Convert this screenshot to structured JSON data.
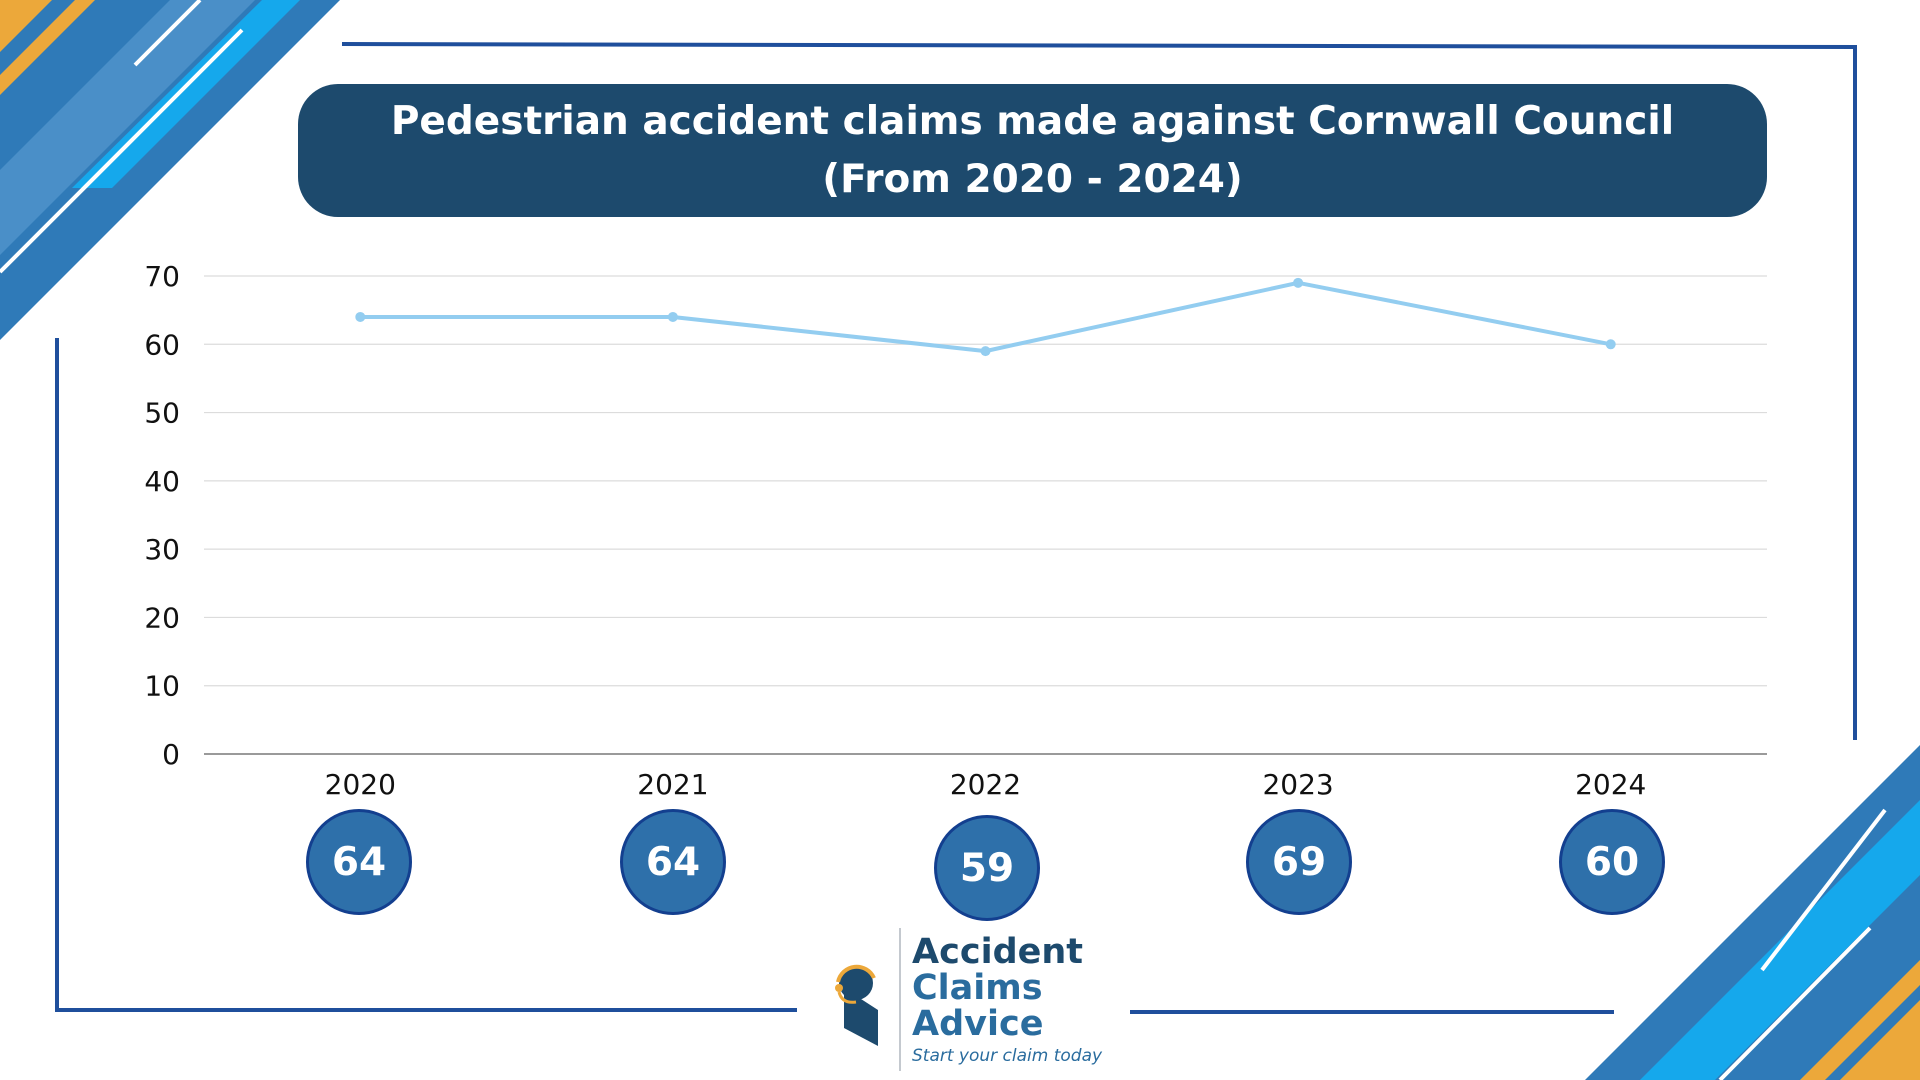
{
  "title_line1": "Pedestrian accident claims made against Cornwall Council",
  "title_line2": "(From 2020 - 2024)",
  "colors": {
    "title_bg": "#1d4a6d",
    "line": "#93cdf0",
    "badge": "#2e70aa",
    "frame": "#1f4f9c",
    "accent_blue": "#2f7ab8",
    "accent_cyan": "#15a8ec",
    "accent_orange": "#eca83a"
  },
  "badges": [
    "64",
    "64",
    "59",
    "69",
    "60"
  ],
  "logo": {
    "word1": "Accident",
    "word2": "Claims",
    "word3": "Advice",
    "tagline": "Start your claim today",
    "icon": "headset-person-icon"
  },
  "chart_data": {
    "type": "line",
    "title": "Pedestrian accident claims made against Cornwall Council (From 2020 - 2024)",
    "categories": [
      "2020",
      "2021",
      "2022",
      "2023",
      "2024"
    ],
    "series": [
      {
        "values": [
          64,
          64,
          59,
          69,
          60
        ]
      }
    ],
    "ylim": [
      0,
      70
    ],
    "yticks": [
      0,
      10,
      20,
      30,
      40,
      50,
      60,
      70
    ],
    "grid": true,
    "legend": "none"
  }
}
